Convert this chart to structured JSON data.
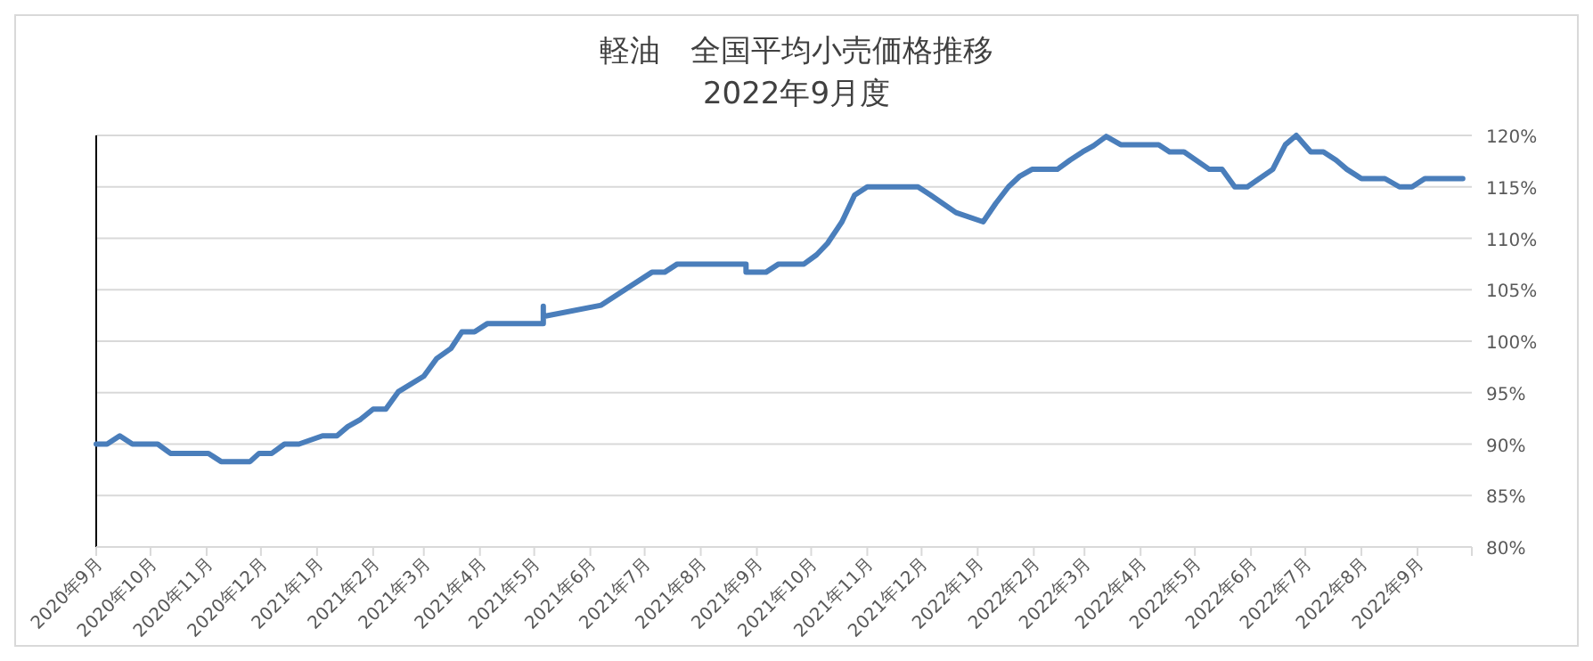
{
  "chart_data": {
    "type": "line",
    "title": "軽油　全国平均小売価格推移",
    "subtitle": "2022年9月度",
    "x": [
      "2020-09-01",
      "2020-09-07",
      "2020-09-14",
      "2020-09-21",
      "2020-10-05",
      "2020-10-12",
      "2020-11-02",
      "2020-11-09",
      "2020-11-25",
      "2020-11-30",
      "2020-12-07",
      "2020-12-14",
      "2020-12-22",
      "2021-01-04",
      "2021-01-12",
      "2021-01-18",
      "2021-01-25",
      "2021-02-01",
      "2021-02-08",
      "2021-02-15",
      "2021-03-01",
      "2021-03-08",
      "2021-03-16",
      "2021-03-22",
      "2021-03-29",
      "2021-04-05",
      "2021-05-06",
      "2021-05-06",
      "2021-05-06",
      "2021-06-07",
      "2021-06-21",
      "2021-07-05",
      "2021-07-12",
      "2021-07-19",
      "2021-08-26",
      "2021-08-26",
      "2021-09-06",
      "2021-09-13",
      "2021-09-27",
      "2021-10-04",
      "2021-10-10",
      "2021-10-18",
      "2021-10-25",
      "2021-11-01",
      "2021-11-29",
      "2021-12-06",
      "2021-12-20",
      "2022-01-04",
      "2022-01-11",
      "2022-01-18",
      "2022-01-24",
      "2022-01-31",
      "2022-02-14",
      "2022-02-21",
      "2022-02-28",
      "2022-03-06",
      "2022-03-13",
      "2022-03-21",
      "2022-04-11",
      "2022-04-17",
      "2022-04-25",
      "2022-05-09",
      "2022-05-16",
      "2022-05-23",
      "2022-05-30",
      "2022-06-13",
      "2022-06-20",
      "2022-06-26",
      "2022-07-04",
      "2022-07-11",
      "2022-07-18",
      "2022-07-24",
      "2022-08-01",
      "2022-08-14",
      "2022-08-22",
      "2022-08-29",
      "2022-09-05",
      "2022-09-26"
    ],
    "series": [
      {
        "color": "#4a7ebb",
        "values": [
          90,
          90,
          90.8,
          90,
          90,
          89.1,
          89.1,
          88.3,
          88.3,
          89.1,
          89.1,
          90,
          90,
          90.8,
          90.8,
          91.7,
          92.4,
          93.4,
          93.4,
          95.1,
          96.6,
          98.3,
          99.3,
          100.9,
          100.9,
          101.7,
          101.7,
          103.4,
          102.4,
          103.5,
          105.1,
          106.7,
          106.7,
          107.5,
          107.5,
          106.7,
          106.7,
          107.5,
          107.5,
          108.4,
          109.5,
          111.6,
          114.2,
          115,
          115,
          114.2,
          112.5,
          111.6,
          113.4,
          115,
          116,
          116.7,
          116.7,
          117.6,
          118.4,
          119,
          119.9,
          119.1,
          119.1,
          118.4,
          118.4,
          116.7,
          116.7,
          115,
          115,
          116.7,
          119.1,
          120,
          118.4,
          118.4,
          117.6,
          116.7,
          115.8,
          115.8,
          115,
          115,
          115.8,
          115.8
        ]
      }
    ],
    "xlim": [
      "2020-09-01",
      "2022-10-01"
    ],
    "xticks": [
      {
        "value": "2020-09-01",
        "label": "2020年9月"
      },
      {
        "value": "2020-10-01",
        "label": "2020年10月"
      },
      {
        "value": "2020-11-01",
        "label": "2020年11月"
      },
      {
        "value": "2020-12-01",
        "label": "2020年12月"
      },
      {
        "value": "2021-01-01",
        "label": "2021年1月"
      },
      {
        "value": "2021-02-01",
        "label": "2021年2月"
      },
      {
        "value": "2021-03-01",
        "label": "2021年3月"
      },
      {
        "value": "2021-04-01",
        "label": "2021年4月"
      },
      {
        "value": "2021-05-01",
        "label": "2021年5月"
      },
      {
        "value": "2021-06-01",
        "label": "2021年6月"
      },
      {
        "value": "2021-07-01",
        "label": "2021年7月"
      },
      {
        "value": "2021-08-01",
        "label": "2021年8月"
      },
      {
        "value": "2021-09-01",
        "label": "2021年9月"
      },
      {
        "value": "2021-10-01",
        "label": "2021年10月"
      },
      {
        "value": "2021-11-01",
        "label": "2021年11月"
      },
      {
        "value": "2021-12-01",
        "label": "2021年12月"
      },
      {
        "value": "2022-01-01",
        "label": "2022年1月"
      },
      {
        "value": "2022-02-01",
        "label": "2022年2月"
      },
      {
        "value": "2022-03-01",
        "label": "2022年3月"
      },
      {
        "value": "2022-04-01",
        "label": "2022年4月"
      },
      {
        "value": "2022-05-01",
        "label": "2022年5月"
      },
      {
        "value": "2022-06-01",
        "label": "2022年6月"
      },
      {
        "value": "2022-07-01",
        "label": "2022年7月"
      },
      {
        "value": "2022-08-01",
        "label": "2022年8月"
      },
      {
        "value": "2022-09-01",
        "label": "2022年9月"
      },
      {
        "value": "2022-10-01",
        "label": null
      }
    ],
    "ylim": [
      80,
      120
    ],
    "yticks": [
      {
        "value": 80,
        "label": "80%"
      },
      {
        "value": 85,
        "label": "85%"
      },
      {
        "value": 90,
        "label": "90%"
      },
      {
        "value": 95,
        "label": "95%"
      },
      {
        "value": 100,
        "label": "100%"
      },
      {
        "value": 105,
        "label": "105%"
      },
      {
        "value": 110,
        "label": "110%"
      },
      {
        "value": 115,
        "label": "115%"
      },
      {
        "value": 120,
        "label": "120%"
      }
    ],
    "grid": "y",
    "marker": "none",
    "line_style": "solid"
  }
}
